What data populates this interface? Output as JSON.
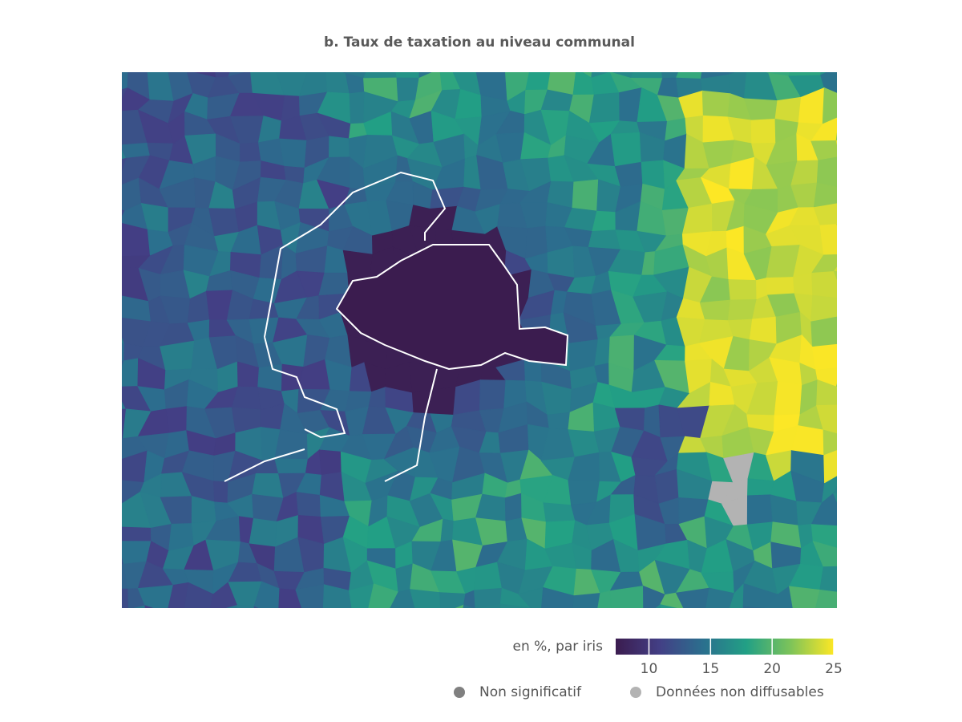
{
  "chart_data": {
    "type": "choropleth",
    "title": "b. Taux de taxation au niveau communal",
    "colorbar": {
      "label": "en %, par iris",
      "range": [
        7.3,
        25
      ],
      "ticks": [
        10,
        15,
        20,
        25
      ],
      "colorscale": [
        "#3b1c4f",
        "#433f85",
        "#2b6f8e",
        "#22a085",
        "#7cc35a",
        "#fde725"
      ]
    },
    "legend": [
      {
        "name": "Non significatif",
        "color": "#808080"
      },
      {
        "name": "Données non diffusables",
        "color": "#b3b3b3"
      }
    ]
  }
}
